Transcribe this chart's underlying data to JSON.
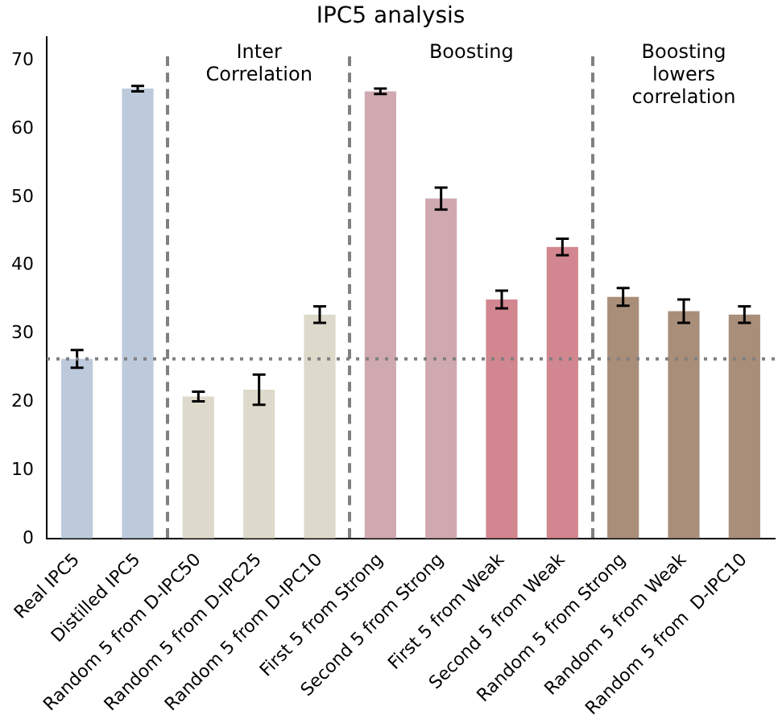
{
  "chart_data": {
    "type": "bar",
    "title": "IPC5 analysis",
    "categories": [
      "Real IPC5",
      "Distilled IPC5",
      "Random 5 from D-IPC50",
      "Random 5 from D-IPC25",
      "Random 5 from D-IPC10",
      "First 5 from Strong",
      "Second 5 from Strong",
      "First 5 from Weak",
      "Second 5 from Weak",
      "Random 5 from Strong",
      "Random 5 from Weak",
      "Random 5 from  D-IPC10"
    ],
    "values": [
      26.3,
      65.9,
      20.8,
      21.8,
      32.8,
      65.5,
      49.8,
      35.0,
      42.7,
      35.4,
      33.3,
      32.8
    ],
    "errors": [
      1.3,
      0.4,
      0.7,
      2.2,
      1.2,
      0.4,
      1.6,
      1.3,
      1.2,
      1.3,
      1.7,
      1.2
    ],
    "colors": [
      "#bccadb",
      "#bccadb",
      "#dddacb",
      "#dddacb",
      "#dddacb",
      "#d0a9b0",
      "#d0a9b0",
      "#d28690",
      "#d28690",
      "#a98e7a",
      "#a98e7a",
      "#a98e7a"
    ],
    "ylim": [
      0,
      73.5
    ],
    "yticks": [
      0,
      10,
      20,
      30,
      40,
      50,
      60,
      70
    ],
    "grid": false,
    "legend": false,
    "ref_lines": [
      {
        "axis": "y",
        "value": 26.3,
        "color": "#808080",
        "line_style": "dotted"
      }
    ],
    "annotations": [
      "Inter Correlation",
      "Boosting",
      "Boosting lowers correlation"
    ]
  }
}
